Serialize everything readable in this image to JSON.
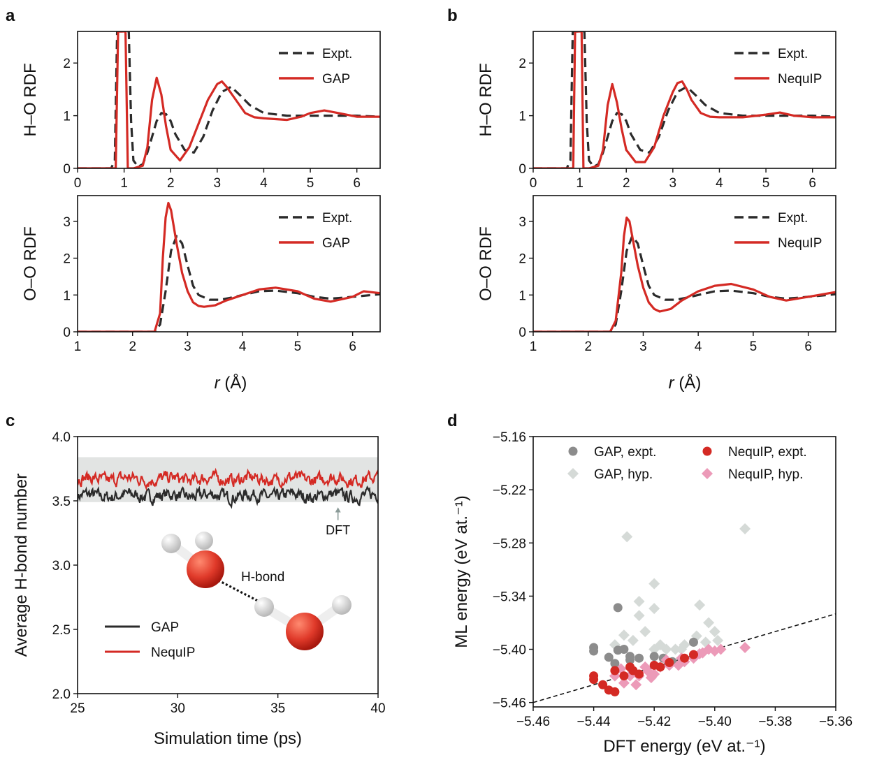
{
  "panels": {
    "a": "a",
    "b": "b",
    "c": "c",
    "d": "d"
  },
  "colors": {
    "expt": "#2b2b2b",
    "ml_red": "#d42a24",
    "gap_gray": "#8c8c8c",
    "gap_hyp": "#d5dad7",
    "nequip_hyp": "#ec9ab8",
    "band": "#e2e4e3",
    "h_atom": "#e8e8e8",
    "o_atom": "#e03a2a"
  },
  "chart_data": [
    {
      "id": "a-top",
      "type": "line",
      "ylabel": "H–O RDF",
      "xlim": [
        0,
        6.5
      ],
      "ylim": [
        0,
        2.6
      ],
      "xticks": [
        "0",
        "1",
        "2",
        "3",
        "4",
        "5",
        "6"
      ],
      "yticks": [
        "0",
        "1",
        "2"
      ],
      "legend": [
        "Expt.",
        "GAP"
      ],
      "legend_position": "top-right",
      "series": [
        {
          "name": "Expt.",
          "style": "dashed",
          "x": [
            0,
            0.72,
            0.8,
            0.85,
            0.9,
            0.96,
            1.0,
            1.04,
            1.1,
            1.15,
            1.2,
            1.3,
            1.4,
            1.5,
            1.6,
            1.7,
            1.8,
            1.9,
            2.0,
            2.1,
            2.3,
            2.5,
            2.7,
            2.9,
            3.1,
            3.3,
            3.5,
            3.7,
            4.0,
            4.5,
            5.0,
            5.5,
            6.0,
            6.5
          ],
          "y": [
            0,
            0,
            0.15,
            2.6,
            2.6,
            2.6,
            2.6,
            2.6,
            2.6,
            0.9,
            0.15,
            0.03,
            0.08,
            0.3,
            0.6,
            0.9,
            1.05,
            1.03,
            0.9,
            0.65,
            0.35,
            0.3,
            0.6,
            1.1,
            1.45,
            1.55,
            1.38,
            1.2,
            1.05,
            1.0,
            1.0,
            1.0,
            1.0,
            0.98
          ]
        },
        {
          "name": "GAP",
          "style": "solid",
          "x": [
            0,
            0.82,
            0.87,
            0.9,
            0.95,
            1.0,
            1.03,
            1.08,
            1.2,
            1.4,
            1.5,
            1.6,
            1.7,
            1.8,
            1.9,
            2.0,
            2.2,
            2.4,
            2.6,
            2.8,
            3.0,
            3.1,
            3.2,
            3.4,
            3.6,
            3.8,
            4.0,
            4.5,
            4.8,
            5.0,
            5.3,
            5.6,
            6.0,
            6.5
          ],
          "y": [
            0,
            0,
            2.6,
            2.6,
            2.6,
            2.6,
            2.6,
            0,
            0,
            0.05,
            0.4,
            1.3,
            1.72,
            1.4,
            0.8,
            0.35,
            0.15,
            0.4,
            0.85,
            1.3,
            1.6,
            1.65,
            1.55,
            1.3,
            1.05,
            0.97,
            0.95,
            0.92,
            0.98,
            1.05,
            1.1,
            1.05,
            0.98,
            0.98
          ]
        }
      ]
    },
    {
      "id": "a-bottom",
      "type": "line",
      "ylabel": "O–O RDF",
      "xlim": [
        1,
        6.5
      ],
      "ylim": [
        0,
        3.7
      ],
      "xticks": [
        "1",
        "2",
        "3",
        "4",
        "5",
        "6"
      ],
      "yticks": [
        "0",
        "1",
        "2",
        "3"
      ],
      "legend": [
        "Expt.",
        "GAP"
      ],
      "legend_position": "top-right",
      "series": [
        {
          "name": "Expt.",
          "style": "dashed",
          "x": [
            1,
            2.4,
            2.5,
            2.6,
            2.7,
            2.8,
            2.9,
            3.0,
            3.1,
            3.2,
            3.4,
            3.6,
            3.8,
            4.0,
            4.3,
            4.6,
            5.0,
            5.3,
            5.6,
            6.0,
            6.5
          ],
          "y": [
            0,
            0,
            0.2,
            1.1,
            2.2,
            2.6,
            2.4,
            1.8,
            1.25,
            1.0,
            0.87,
            0.87,
            0.93,
            1.0,
            1.1,
            1.12,
            1.05,
            0.95,
            0.9,
            0.95,
            1.02
          ]
        },
        {
          "name": "GAP",
          "style": "solid",
          "x": [
            1,
            2.4,
            2.5,
            2.55,
            2.6,
            2.65,
            2.7,
            2.8,
            2.9,
            3.0,
            3.1,
            3.2,
            3.3,
            3.5,
            3.7,
            4.0,
            4.3,
            4.6,
            5.0,
            5.3,
            5.6,
            6.0,
            6.2,
            6.5
          ],
          "y": [
            0,
            0,
            0.5,
            2.0,
            3.1,
            3.5,
            3.3,
            2.4,
            1.6,
            1.1,
            0.8,
            0.7,
            0.68,
            0.72,
            0.85,
            1.0,
            1.15,
            1.2,
            1.1,
            0.9,
            0.82,
            0.95,
            1.1,
            1.05
          ]
        }
      ]
    },
    {
      "id": "b-top",
      "type": "line",
      "ylabel": "H–O RDF",
      "xlim": [
        0,
        6.5
      ],
      "ylim": [
        0,
        2.6
      ],
      "xticks": [
        "0",
        "1",
        "2",
        "3",
        "4",
        "5",
        "6"
      ],
      "yticks": [
        "0",
        "1",
        "2"
      ],
      "legend": [
        "Expt.",
        "NequIP"
      ],
      "legend_position": "top-right",
      "series": [
        {
          "name": "Expt.",
          "style": "dashed",
          "x": [
            0,
            0.72,
            0.8,
            0.85,
            0.9,
            0.96,
            1.0,
            1.04,
            1.1,
            1.15,
            1.2,
            1.3,
            1.4,
            1.5,
            1.6,
            1.7,
            1.8,
            1.9,
            2.0,
            2.1,
            2.3,
            2.5,
            2.7,
            2.9,
            3.1,
            3.3,
            3.5,
            3.7,
            4.0,
            4.5,
            5.0,
            5.5,
            6.0,
            6.5
          ],
          "y": [
            0,
            0,
            0.15,
            2.6,
            2.6,
            2.6,
            2.6,
            2.6,
            2.6,
            0.9,
            0.15,
            0.03,
            0.08,
            0.3,
            0.6,
            0.9,
            1.05,
            1.03,
            0.9,
            0.65,
            0.35,
            0.3,
            0.6,
            1.1,
            1.45,
            1.55,
            1.38,
            1.2,
            1.05,
            1.0,
            1.0,
            1.0,
            1.0,
            0.98
          ]
        },
        {
          "name": "NequIP",
          "style": "solid",
          "x": [
            0,
            0.86,
            0.9,
            0.93,
            0.97,
            1.0,
            1.04,
            1.08,
            1.2,
            1.4,
            1.5,
            1.6,
            1.7,
            1.8,
            1.9,
            2.0,
            2.2,
            2.4,
            2.6,
            2.8,
            3.0,
            3.1,
            3.2,
            3.3,
            3.4,
            3.6,
            3.8,
            4.0,
            4.5,
            5.0,
            5.3,
            5.6,
            6.0,
            6.5
          ],
          "y": [
            0,
            0,
            2.6,
            2.6,
            2.6,
            2.6,
            2.6,
            0,
            0,
            0.05,
            0.35,
            1.2,
            1.6,
            1.25,
            0.75,
            0.35,
            0.12,
            0.12,
            0.4,
            1.0,
            1.45,
            1.62,
            1.65,
            1.5,
            1.3,
            1.05,
            0.98,
            0.97,
            0.97,
            1.02,
            1.06,
            1.0,
            0.97,
            0.97
          ]
        }
      ]
    },
    {
      "id": "b-bottom",
      "type": "line",
      "ylabel": "O–O RDF",
      "xlim": [
        1,
        6.5
      ],
      "ylim": [
        0,
        3.7
      ],
      "xticks": [
        "1",
        "2",
        "3",
        "4",
        "5",
        "6"
      ],
      "yticks": [
        "0",
        "1",
        "2",
        "3"
      ],
      "legend": [
        "Expt.",
        "NequIP"
      ],
      "legend_position": "top-right",
      "series": [
        {
          "name": "Expt.",
          "style": "dashed",
          "x": [
            1,
            2.4,
            2.5,
            2.6,
            2.7,
            2.8,
            2.9,
            3.0,
            3.1,
            3.2,
            3.4,
            3.6,
            3.8,
            4.0,
            4.3,
            4.6,
            5.0,
            5.3,
            5.6,
            6.0,
            6.5
          ],
          "y": [
            0,
            0,
            0.2,
            1.1,
            2.2,
            2.6,
            2.4,
            1.8,
            1.25,
            1.0,
            0.87,
            0.87,
            0.93,
            1.0,
            1.1,
            1.12,
            1.05,
            0.95,
            0.9,
            0.95,
            1.02
          ]
        },
        {
          "name": "NequIP",
          "style": "solid",
          "x": [
            1,
            2.4,
            2.5,
            2.6,
            2.65,
            2.7,
            2.75,
            2.8,
            2.9,
            3.0,
            3.1,
            3.2,
            3.3,
            3.5,
            3.7,
            4.0,
            4.3,
            4.6,
            5.0,
            5.3,
            5.6,
            6.0,
            6.5
          ],
          "y": [
            0,
            0,
            0.3,
            1.6,
            2.6,
            3.1,
            3.0,
            2.6,
            1.8,
            1.2,
            0.8,
            0.62,
            0.55,
            0.62,
            0.85,
            1.1,
            1.25,
            1.3,
            1.15,
            0.95,
            0.85,
            0.95,
            1.08
          ]
        }
      ]
    },
    {
      "id": "c",
      "type": "line",
      "xlabel": "Simulation time (ps)",
      "ylabel": "Average H-bond number",
      "xlim": [
        25,
        40
      ],
      "ylim": [
        2.0,
        4.0
      ],
      "xticks": [
        "25",
        "30",
        "35",
        "40"
      ],
      "yticks": [
        "2.0",
        "2.5",
        "3.0",
        "3.5",
        "4.0"
      ],
      "band": [
        3.49,
        3.84
      ],
      "band_label": "DFT",
      "legend": [
        "GAP",
        "NequIP"
      ],
      "legend_position": "bottom-left",
      "molecule_label": "H-bond",
      "series": [
        {
          "name": "GAP",
          "mean": 3.54,
          "noise": 0.035,
          "x_start": 25,
          "x_end": 40
        },
        {
          "name": "NequIP",
          "mean": 3.67,
          "noise": 0.035,
          "x_start": 25,
          "x_end": 40
        }
      ]
    },
    {
      "id": "d",
      "type": "scatter",
      "xlabel": "DFT energy (eV at.⁻¹)",
      "ylabel": "ML energy (eV at.⁻¹)",
      "xlim": [
        -5.46,
        -5.36
      ],
      "ylim": [
        -5.465,
        -5.16
      ],
      "xticks": [
        "−5.46",
        "−5.44",
        "−5.42",
        "−5.40",
        "−5.38",
        "−5.36"
      ],
      "yticks": [
        "−5.16",
        "−5.22",
        "−5.28",
        "−5.34",
        "−5.40",
        "−5.46"
      ],
      "legend": [
        "GAP, expt.",
        "NequIP, expt.",
        "GAP, hyp.",
        "NequIP, hyp."
      ],
      "legend_position": "top",
      "series": [
        {
          "name": "GAP, expt.",
          "marker": "circle",
          "x": [
            -5.44,
            -5.44,
            -5.435,
            -5.433,
            -5.432,
            -5.432,
            -5.43,
            -5.428,
            -5.425,
            -5.42,
            -5.417,
            -5.414,
            -5.407,
            -5.428
          ],
          "y": [
            -5.398,
            -5.402,
            -5.409,
            -5.416,
            -5.401,
            -5.353,
            -5.4,
            -5.408,
            -5.41,
            -5.408,
            -5.41,
            -5.414,
            -5.392,
            -5.412
          ]
        },
        {
          "name": "GAP, hyp.",
          "marker": "diamond",
          "x": [
            -5.429,
            -5.425,
            -5.42,
            -5.43,
            -5.425,
            -5.42,
            -5.416,
            -5.405,
            -5.402,
            -5.4,
            -5.39,
            -5.42,
            -5.427,
            -5.418,
            -5.413,
            -5.41,
            -5.406,
            -5.403,
            -5.399,
            -5.433,
            -5.423,
            -5.411
          ],
          "y": [
            -5.273,
            -5.362,
            -5.326,
            -5.384,
            -5.346,
            -5.354,
            -5.4,
            -5.35,
            -5.37,
            -5.38,
            -5.264,
            -5.4,
            -5.39,
            -5.395,
            -5.4,
            -5.395,
            -5.385,
            -5.392,
            -5.39,
            -5.395,
            -5.38,
            -5.4
          ]
        },
        {
          "name": "NequIP, expt.",
          "marker": "circle",
          "x": [
            -5.44,
            -5.44,
            -5.437,
            -5.435,
            -5.433,
            -5.43,
            -5.427,
            -5.425,
            -5.42,
            -5.418,
            -5.415,
            -5.41,
            -5.407,
            -5.433,
            -5.428
          ],
          "y": [
            -5.43,
            -5.434,
            -5.44,
            -5.446,
            -5.448,
            -5.43,
            -5.424,
            -5.428,
            -5.418,
            -5.42,
            -5.415,
            -5.41,
            -5.406,
            -5.424,
            -5.42
          ]
        },
        {
          "name": "NequIP, hyp.",
          "marker": "diamond",
          "x": [
            -5.433,
            -5.43,
            -5.428,
            -5.425,
            -5.422,
            -5.42,
            -5.418,
            -5.415,
            -5.412,
            -5.41,
            -5.407,
            -5.405,
            -5.402,
            -5.4,
            -5.398,
            -5.39,
            -5.431,
            -5.426,
            -5.421,
            -5.416,
            -5.411,
            -5.404,
            -5.427,
            -5.423
          ],
          "y": [
            -5.43,
            -5.438,
            -5.43,
            -5.43,
            -5.425,
            -5.428,
            -5.42,
            -5.418,
            -5.418,
            -5.414,
            -5.41,
            -5.405,
            -5.4,
            -5.402,
            -5.4,
            -5.398,
            -5.422,
            -5.44,
            -5.432,
            -5.412,
            -5.41,
            -5.404,
            -5.425,
            -5.42
          ]
        }
      ],
      "parity_line": {
        "x": [
          -5.46,
          -5.36
        ],
        "y": [
          -5.46,
          -5.36
        ]
      }
    }
  ],
  "shared_axis_label": "r (Å)",
  "shared_axis_label_unit": "(Å)"
}
